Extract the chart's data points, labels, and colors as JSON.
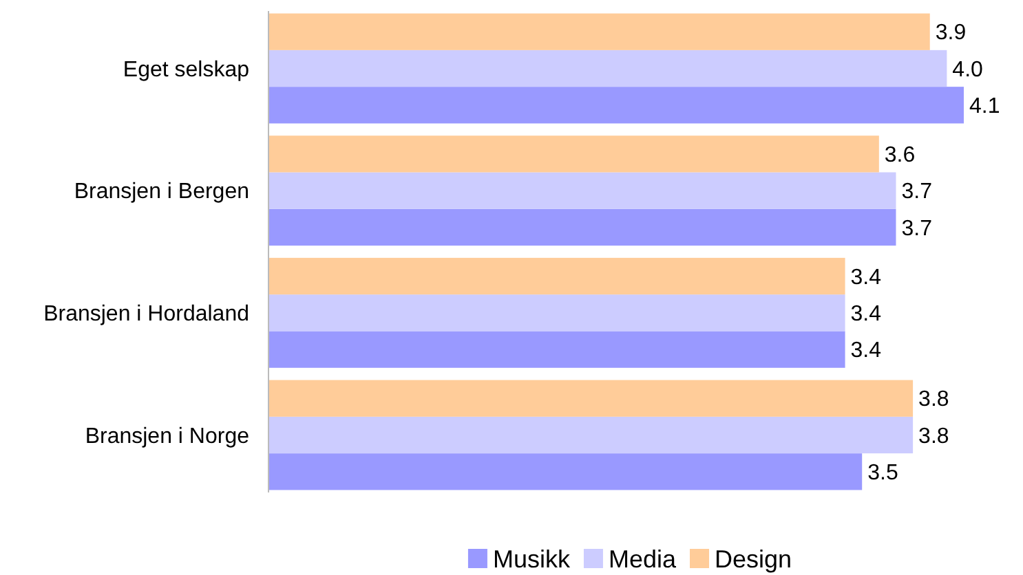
{
  "chart_data": {
    "type": "bar",
    "orientation": "horizontal",
    "categories": [
      "Eget selskap",
      "Bransjen i Bergen",
      "Bransjen i Hordaland",
      "Bransjen i Norge"
    ],
    "series": [
      {
        "name": "Musikk",
        "color": "#9999ff",
        "values": [
          4.1,
          3.7,
          3.4,
          3.5
        ],
        "value_labels": [
          "4.1",
          "3.7",
          "3.4",
          "3.5"
        ]
      },
      {
        "name": "Media",
        "color": "#ccccff",
        "values": [
          4.0,
          3.7,
          3.4,
          3.8
        ],
        "value_labels": [
          "4.0",
          "3.7",
          "3.4",
          "3.8"
        ]
      },
      {
        "name": "Design",
        "color": "#ffcc99",
        "values": [
          3.9,
          3.6,
          3.4,
          3.8
        ],
        "value_labels": [
          "3.9",
          "3.6",
          "3.4",
          "3.8"
        ]
      }
    ],
    "tick_labels": "y",
    "legend": "bottom"
  }
}
